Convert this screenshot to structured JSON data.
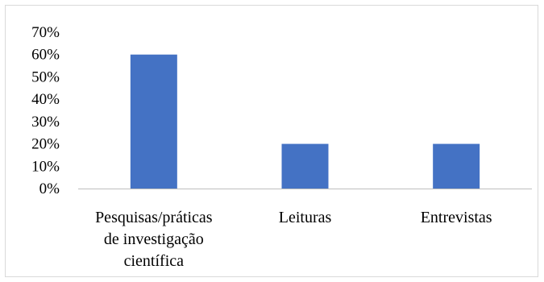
{
  "chart_data": {
    "type": "bar",
    "title": "",
    "categories": [
      [
        "Pesquisas/práticas",
        "de investigação",
        "científica"
      ],
      [
        "Leituras"
      ],
      [
        "Entrevistas"
      ]
    ],
    "category_labels": [
      "Pesquisas/práticas de investigação científica",
      "Leituras",
      "Entrevistas"
    ],
    "values": [
      60,
      20,
      20
    ],
    "y_ticks": [
      "0%",
      "10%",
      "20%",
      "30%",
      "40%",
      "50%",
      "60%",
      "70%"
    ],
    "ylim": [
      0,
      70
    ],
    "unit": "%",
    "grid": false,
    "bar_color": "#4472c4",
    "axis_color": "#bfbfbf"
  }
}
